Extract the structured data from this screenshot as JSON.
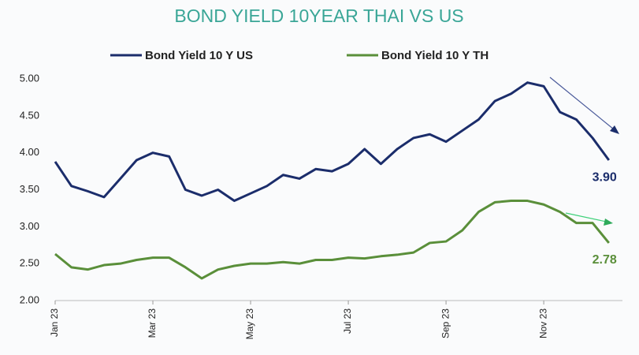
{
  "chart_data": {
    "type": "line",
    "title": "BOND YIELD 10YEAR THAI VS US",
    "categories": [
      "Jan 23",
      null,
      null,
      null,
      null,
      null,
      "Mar 23",
      null,
      null,
      null,
      null,
      null,
      "May 23",
      null,
      null,
      null,
      null,
      null,
      "Jul 23",
      null,
      null,
      null,
      null,
      null,
      "Sep 23",
      null,
      null,
      null,
      null,
      null,
      "Nov 23",
      null,
      null,
      null,
      null
    ],
    "series": [
      {
        "name": "Bond Yield 10 Y US",
        "color": "#1b2d6b",
        "values": [
          3.88,
          3.55,
          3.48,
          3.4,
          3.65,
          3.9,
          4.0,
          3.95,
          3.5,
          3.42,
          3.5,
          3.35,
          3.45,
          3.55,
          3.7,
          3.65,
          3.78,
          3.75,
          3.85,
          4.05,
          3.85,
          4.05,
          4.2,
          4.25,
          4.15,
          4.3,
          4.45,
          4.7,
          4.8,
          4.95,
          4.9,
          4.55,
          4.45,
          4.2,
          3.9
        ],
        "value_labels": [
          null,
          null,
          null,
          null,
          null,
          null,
          null,
          null,
          null,
          null,
          null,
          null,
          null,
          null,
          null,
          null,
          null,
          null,
          null,
          null,
          null,
          null,
          null,
          null,
          null,
          null,
          null,
          null,
          null,
          null,
          null,
          null,
          null,
          null,
          "3.90"
        ]
      },
      {
        "name": "Bond Yield 10 Y TH",
        "color": "#5a8f3a",
        "values": [
          2.63,
          2.45,
          2.42,
          2.48,
          2.5,
          2.55,
          2.58,
          2.58,
          2.45,
          2.3,
          2.42,
          2.47,
          2.5,
          2.5,
          2.52,
          2.5,
          2.55,
          2.55,
          2.58,
          2.57,
          2.6,
          2.62,
          2.65,
          2.78,
          2.8,
          2.95,
          3.2,
          3.33,
          3.35,
          3.35,
          3.3,
          3.2,
          3.05,
          3.05,
          2.78
        ],
        "value_labels": [
          null,
          null,
          null,
          null,
          null,
          null,
          null,
          null,
          null,
          null,
          null,
          null,
          null,
          null,
          null,
          null,
          null,
          null,
          null,
          null,
          null,
          null,
          null,
          null,
          null,
          null,
          null,
          null,
          null,
          null,
          null,
          null,
          null,
          null,
          "2.78"
        ]
      }
    ],
    "ylim": [
      2,
      5
    ],
    "yticks": [
      {
        "value": 2,
        "label": "2.00"
      },
      {
        "value": 2.5,
        "label": "2.50"
      },
      {
        "value": 3,
        "label": "3.00"
      },
      {
        "value": 3.5,
        "label": "3.50"
      },
      {
        "value": 4,
        "label": "4.00"
      },
      {
        "value": 4.5,
        "label": "4.50"
      },
      {
        "value": 5,
        "label": "5.00"
      }
    ],
    "grid": false,
    "legend": "top"
  }
}
